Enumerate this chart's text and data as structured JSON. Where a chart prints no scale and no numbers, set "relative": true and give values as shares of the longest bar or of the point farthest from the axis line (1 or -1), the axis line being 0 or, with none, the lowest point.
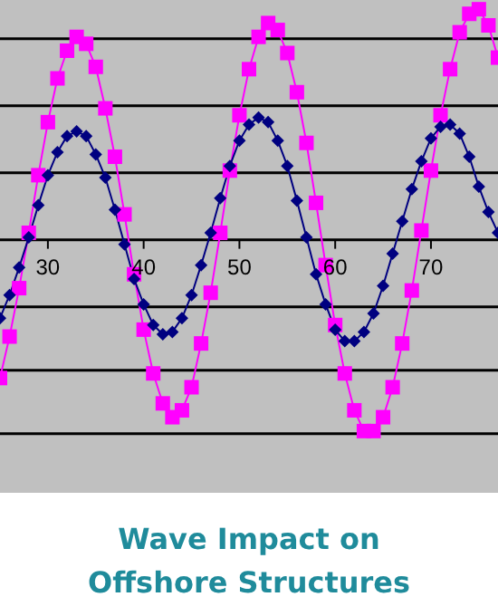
{
  "chart_data": {
    "type": "line",
    "title": "Wave Impact on Offshore Structures",
    "relative": true,
    "x": [
      25,
      26,
      27,
      28,
      29,
      30,
      31,
      32,
      33,
      34,
      35,
      36,
      37,
      38,
      39,
      40,
      41,
      42,
      43,
      44,
      45,
      46,
      47,
      48,
      49,
      50,
      51,
      52,
      53,
      54,
      55,
      56,
      57,
      58,
      59,
      60,
      61,
      62,
      63,
      64,
      65,
      66,
      67,
      68,
      69,
      70,
      71,
      72,
      73,
      74,
      75,
      76,
      77
    ],
    "series": [
      {
        "color": "#ff00ff",
        "marker": "square",
        "values": [
          -0.6,
          -0.42,
          -0.21,
          0.03,
          0.28,
          0.51,
          0.7,
          0.82,
          0.88,
          0.85,
          0.75,
          0.57,
          0.36,
          0.11,
          -0.15,
          -0.39,
          -0.58,
          -0.71,
          -0.77,
          -0.74,
          -0.64,
          -0.45,
          -0.23,
          0.03,
          0.3,
          0.54,
          0.74,
          0.88,
          0.94,
          0.91,
          0.81,
          0.64,
          0.42,
          0.16,
          -0.11,
          -0.37,
          -0.58,
          -0.74,
          -0.83,
          -0.83,
          -0.77,
          -0.64,
          -0.45,
          -0.22,
          0.04,
          0.3,
          0.54,
          0.74,
          0.9,
          0.98,
          1.0,
          0.93,
          0.79
        ]
      },
      {
        "color": "#000080",
        "marker": "diamond",
        "values": [
          -0.34,
          -0.24,
          -0.12,
          0.01,
          0.15,
          0.28,
          0.38,
          0.45,
          0.47,
          0.45,
          0.37,
          0.27,
          0.13,
          -0.02,
          -0.17,
          -0.28,
          -0.37,
          -0.41,
          -0.4,
          -0.34,
          -0.24,
          -0.11,
          0.03,
          0.18,
          0.32,
          0.43,
          0.5,
          0.53,
          0.51,
          0.43,
          0.32,
          0.17,
          0.01,
          -0.15,
          -0.28,
          -0.39,
          -0.44,
          -0.44,
          -0.4,
          -0.32,
          -0.2,
          -0.06,
          0.08,
          0.22,
          0.34,
          0.44,
          0.49,
          0.5,
          0.46,
          0.36,
          0.23,
          0.12,
          0.03
        ]
      }
    ],
    "xlim": [
      25,
      77
    ],
    "xticks": [
      30,
      40,
      50,
      60,
      70
    ],
    "grid": "y",
    "tick_labels": "x"
  }
}
